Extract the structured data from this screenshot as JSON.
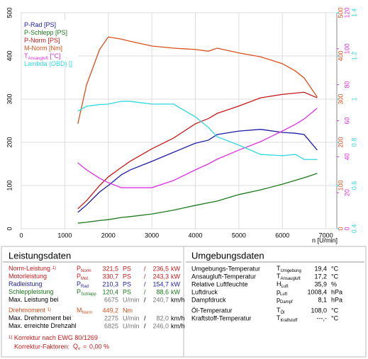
{
  "chart_data": {
    "type": "line",
    "xlabel": "n [U/min]",
    "x": [
      1300,
      1500,
      1800,
      2000,
      2300,
      2500,
      3000,
      3500,
      4000,
      4300,
      4500,
      5000,
      5500,
      6000,
      6300,
      6500,
      6800
    ],
    "series": [
      {
        "name": "P-Rad [PS]",
        "color": "#1c1ca8",
        "axis": "y",
        "values": [
          38,
          55,
          85,
          100,
          125,
          136,
          156,
          177,
          198,
          205,
          218,
          226,
          230,
          223,
          221,
          218,
          182
        ]
      },
      {
        "name": "P-Schlepp [PS]",
        "color": "#1c7a1c",
        "axis": "y",
        "values": [
          13,
          15,
          19,
          21,
          26,
          28,
          34,
          43,
          54,
          60,
          64,
          79,
          90,
          103,
          112,
          118,
          128
        ]
      },
      {
        "name": "P-Norm [PS]",
        "color": "#c8181a",
        "axis": "y",
        "values": [
          46,
          65,
          100,
          120,
          142,
          156,
          185,
          210,
          243,
          255,
          267,
          284,
          303,
          311,
          314,
          316,
          303
        ]
      },
      {
        "name": "M-Norm [Nm]",
        "color": "#d8501c",
        "axis": "y2",
        "values": [
          243,
          333,
          415,
          444,
          439,
          434,
          423,
          418,
          415,
          411,
          418,
          407,
          398,
          382,
          365,
          349,
          305
        ]
      },
      {
        "name": "T",
        "name_sub": "Ansaugluft",
        "name_unit": "[°C]",
        "color": "#e030e0",
        "axis": "y3",
        "values": [
          36.6,
          32.7,
          28,
          25.6,
          22.8,
          22.8,
          22.8,
          26.8,
          32.7,
          36,
          38.6,
          43.7,
          48.4,
          54.3,
          58,
          61,
          67
        ]
      },
      {
        "name": "Lambda (OBD) []",
        "color": "#30d8e0",
        "axis": "y4",
        "values": [
          0.944,
          0.967,
          0.975,
          0.977,
          0.99,
          0.99,
          0.977,
          0.977,
          0.918,
          0.869,
          0.826,
          0.787,
          0.744,
          0.738,
          0.744,
          0.721,
          0.72
        ]
      }
    ],
    "xlim": [
      0,
      7250
    ],
    "xticks": [
      0,
      1000,
      2000,
      3000,
      4000,
      5000,
      6000,
      7000
    ],
    "ylim": [
      0,
      500
    ],
    "yticks": [
      0,
      100,
      200,
      300,
      400,
      500
    ],
    "y2lim": [
      0,
      500
    ],
    "y2ticks": [
      0,
      100,
      200,
      300,
      400,
      500
    ],
    "y3lim": [
      0,
      120
    ],
    "y3ticks": [
      0,
      20,
      40,
      60,
      80,
      100,
      120
    ],
    "y4lim": [
      0.4,
      1.4
    ],
    "y4ticks": [
      0.4,
      0.6,
      0.8,
      1,
      1.2,
      1.4
    ],
    "grid": true
  },
  "left_panel": {
    "title": "Leistungsdaten",
    "rows": [
      {
        "label": "Norm-Leistung",
        "note": "1)",
        "symbol": {
          "main": "P",
          "sub": "Norm"
        },
        "value": "321,5",
        "unit": "PS",
        "sep": "/",
        "value2": "236,5",
        "unit2": "kW",
        "color": "#c8181a"
      },
      {
        "label": "Motorleistung",
        "symbol": {
          "main": "P",
          "sub": "Mot"
        },
        "value": "330,7",
        "unit": "PS",
        "sep": "/",
        "value2": "243,3",
        "unit2": "kW",
        "color": "#c8181a"
      },
      {
        "label": "Radleistung",
        "symbol": {
          "main": "P",
          "sub": "Rad"
        },
        "value": "210,3",
        "unit": "PS",
        "sep": "/",
        "value2": "154,7",
        "unit2": "kW",
        "color": "#1c1ca8"
      },
      {
        "label": "Schleppleistung",
        "symbol": {
          "main": "P",
          "sub": "Schlepp"
        },
        "value": "120,4",
        "unit": "PS",
        "sep": "/",
        "value2": "88,6",
        "unit2": "kW",
        "color": "#1c7a1c"
      },
      {
        "label": "Max. Leistung bei",
        "value": "6675",
        "unit": "U/min",
        "sep": "/",
        "value2": "240,7",
        "unit2": "km/h",
        "color": "#000000"
      },
      {
        "label": "Drehmoment",
        "note": "1)",
        "symbol": {
          "main": "M",
          "sub": "Norm"
        },
        "value": "449,2",
        "unit": "Nm",
        "color": "#d8501c"
      },
      {
        "label": "Max. Drehmoment bei",
        "value": "2275",
        "unit": "U/min",
        "sep": "/",
        "value2": "82,0",
        "unit2": "km/h",
        "color": "#000000"
      },
      {
        "label": "Max. erreichte Drehzahl",
        "value": "6825",
        "unit": "U/min",
        "sep": "/",
        "value2": "246,0",
        "unit2": "km/h",
        "color": "#000000"
      }
    ],
    "footnote": {
      "note": "1)",
      "text": "Korrektur nach EWG 80/1269"
    },
    "factor": {
      "text": "Korrektur-Faktoren:",
      "symbol": {
        "main": "Q",
        "sub": "v"
      },
      "eq": "=",
      "value": "0,00",
      "unit": "%"
    }
  },
  "right_panel": {
    "title": "Umgebungsdaten",
    "rows": [
      {
        "label": "Umgebungs-Temperatur",
        "symbol": {
          "main": "T",
          "sub": "Umgebung"
        },
        "value": "19,4",
        "unit": "°C"
      },
      {
        "label": "Ansaugluft-Temperatur",
        "symbol": {
          "main": "T",
          "sub": "Ansaugluft"
        },
        "value": "17,2",
        "unit": "°C"
      },
      {
        "label": "Relative Luftfeuchte",
        "symbol": {
          "main": "H",
          "sub": "Luft"
        },
        "value": "35,9",
        "unit": "%"
      },
      {
        "label": "Luftdruck",
        "symbol": {
          "main": "p",
          "sub": "Luft"
        },
        "value": "1008,4",
        "unit": "hPa"
      },
      {
        "label": "Dampfdruck",
        "symbol": {
          "main": "p",
          "sub": "Dampf"
        },
        "value": "8,1",
        "unit": "hPa"
      },
      {
        "label": "Öl-Temperatur",
        "symbol": {
          "main": "T",
          "sub": "Öl"
        },
        "value": "108,0",
        "unit": "°C"
      },
      {
        "label": "Kraftstoff-Temperatur",
        "symbol": {
          "main": "T",
          "sub": "Kraftstoff"
        },
        "value": "---,-",
        "unit": "°C"
      }
    ]
  }
}
